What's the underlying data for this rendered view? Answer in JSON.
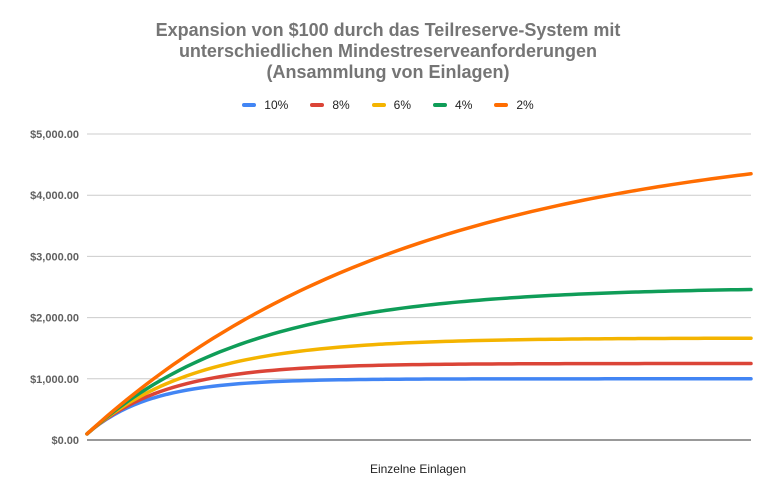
{
  "chart_data": {
    "type": "line",
    "title_lines": [
      "Expansion von $100 durch das Teilreserve-System mit",
      "unterschiedlichen Mindestreserveanforderungen",
      "(Ansammlung von Einlagen)"
    ],
    "xlabel": "Einzelne Einlagen",
    "ylabel": "",
    "ylim": [
      0,
      5000
    ],
    "yticks": [
      0,
      1000,
      2000,
      3000,
      4000,
      5000
    ],
    "ytick_labels": [
      "$0.00",
      "$1,000.00",
      "$2,000.00",
      "$3,000.00",
      "$4,000.00",
      "$5,000.00"
    ],
    "grid": true,
    "legend_position": "top",
    "x_steps": 100,
    "series": [
      {
        "name": "10%",
        "reserve_ratio": 0.1,
        "color": "#4285f4"
      },
      {
        "name": "8%",
        "reserve_ratio": 0.08,
        "color": "#db4437"
      },
      {
        "name": "6%",
        "reserve_ratio": 0.06,
        "color": "#f4b400"
      },
      {
        "name": "4%",
        "reserve_ratio": 0.04,
        "color": "#0f9d58"
      },
      {
        "name": "2%",
        "reserve_ratio": 0.02,
        "color": "#ff6d01"
      }
    ]
  }
}
